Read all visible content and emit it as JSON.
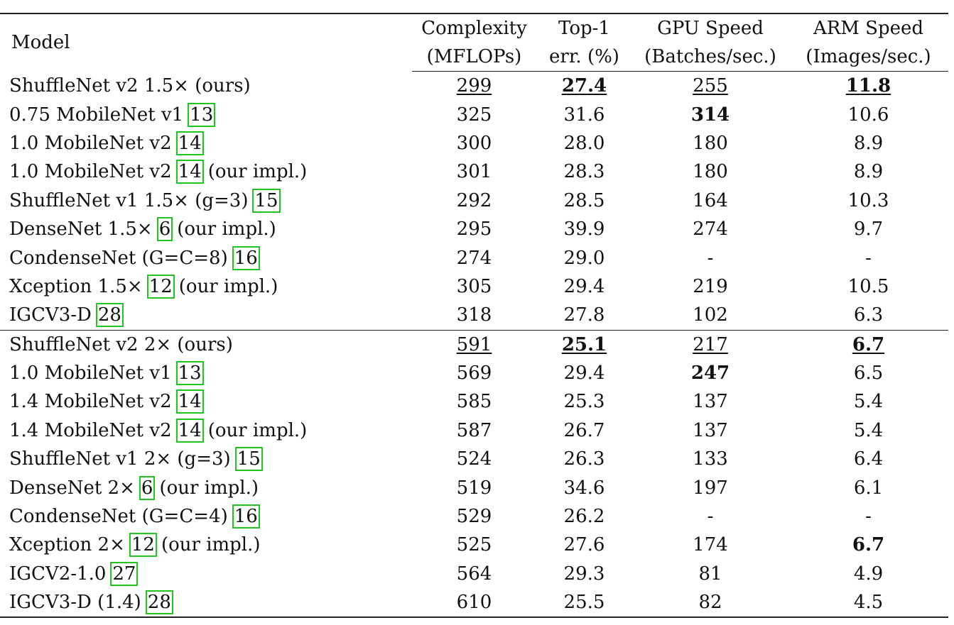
{
  "header": {
    "model": "Model",
    "complexity": [
      "Complexity",
      "(MFLOPs)"
    ],
    "top1": [
      "Top-1",
      "err. (%)"
    ],
    "gpu": [
      "GPU Speed",
      "(Batches/sec.)"
    ],
    "arm": [
      "ARM Speed",
      "(Images/sec.)"
    ]
  },
  "group_a": [
    {
      "name": "ShuffleNet v2 1.5× (ours)",
      "cite": "",
      "suffix": "",
      "complexity": "299",
      "top1": "27.4",
      "gpu": "255",
      "arm": "11.8"
    },
    {
      "name": "0.75 MobileNet v1",
      "cite": "13",
      "suffix": "",
      "complexity": "325",
      "top1": "31.6",
      "gpu": "314",
      "arm": "10.6"
    },
    {
      "name": "1.0 MobileNet v2",
      "cite": "14",
      "suffix": "",
      "complexity": "300",
      "top1": "28.0",
      "gpu": "180",
      "arm": "8.9"
    },
    {
      "name": "1.0 MobileNet v2",
      "cite": "14",
      "suffix": "(our impl.)",
      "complexity": "301",
      "top1": "28.3",
      "gpu": "180",
      "arm": "8.9"
    },
    {
      "name": "ShuffleNet v1 1.5× (g=3)",
      "cite": "15",
      "suffix": "",
      "complexity": "292",
      "top1": "28.5",
      "gpu": "164",
      "arm": "10.3"
    },
    {
      "name": "DenseNet 1.5×",
      "cite": "6",
      "suffix": "(our impl.)",
      "complexity": "295",
      "top1": "39.9",
      "gpu": "274",
      "arm": "9.7"
    },
    {
      "name": "CondenseNet (G=C=8)",
      "cite": "16",
      "suffix": "",
      "complexity": "274",
      "top1": "29.0",
      "gpu": "-",
      "arm": "-"
    },
    {
      "name": "Xception 1.5×",
      "cite": "12",
      "suffix": "(our impl.)",
      "complexity": "305",
      "top1": "29.4",
      "gpu": "219",
      "arm": "10.5"
    },
    {
      "name": "IGCV3-D",
      "cite": "28",
      "suffix": "",
      "complexity": "318",
      "top1": "27.8",
      "gpu": "102",
      "arm": "6.3"
    }
  ],
  "group_b": [
    {
      "name": "ShuffleNet v2 2× (ours)",
      "cite": "",
      "suffix": "",
      "complexity": "591",
      "top1": "25.1",
      "gpu": "217",
      "arm": "6.7"
    },
    {
      "name": "1.0 MobileNet v1",
      "cite": "13",
      "suffix": "",
      "complexity": "569",
      "top1": "29.4",
      "gpu": "247",
      "arm": "6.5"
    },
    {
      "name": "1.4 MobileNet v2",
      "cite": "14",
      "suffix": "",
      "complexity": "585",
      "top1": "25.3",
      "gpu": "137",
      "arm": "5.4"
    },
    {
      "name": "1.4 MobileNet v2",
      "cite": "14",
      "suffix": "(our impl.)",
      "complexity": "587",
      "top1": "26.7",
      "gpu": "137",
      "arm": "5.4"
    },
    {
      "name": "ShuffleNet v1 2× (g=3)",
      "cite": "15",
      "suffix": "",
      "complexity": "524",
      "top1": "26.3",
      "gpu": "133",
      "arm": "6.4"
    },
    {
      "name": "DenseNet 2×",
      "cite": "6",
      "suffix": "(our impl.)",
      "complexity": "519",
      "top1": "34.6",
      "gpu": "197",
      "arm": "6.1"
    },
    {
      "name": "CondenseNet (G=C=4)",
      "cite": "16",
      "suffix": "",
      "complexity": "529",
      "top1": "26.2",
      "gpu": "-",
      "arm": "-"
    },
    {
      "name": "Xception 2×",
      "cite": "12",
      "suffix": "(our impl.)",
      "complexity": "525",
      "top1": "27.6",
      "gpu": "174",
      "arm": "6.7"
    },
    {
      "name": "IGCV2-1.0",
      "cite": "27",
      "suffix": "",
      "complexity": "564",
      "top1": "29.3",
      "gpu": "81",
      "arm": "4.9"
    },
    {
      "name": "IGCV3-D (1.4)",
      "cite": "28",
      "suffix": "",
      "complexity": "610",
      "top1": "25.5",
      "gpu": "82",
      "arm": "4.5"
    }
  ],
  "colors": {
    "cite_border": "#22c322",
    "rule": "#222222",
    "text": "#111111"
  }
}
